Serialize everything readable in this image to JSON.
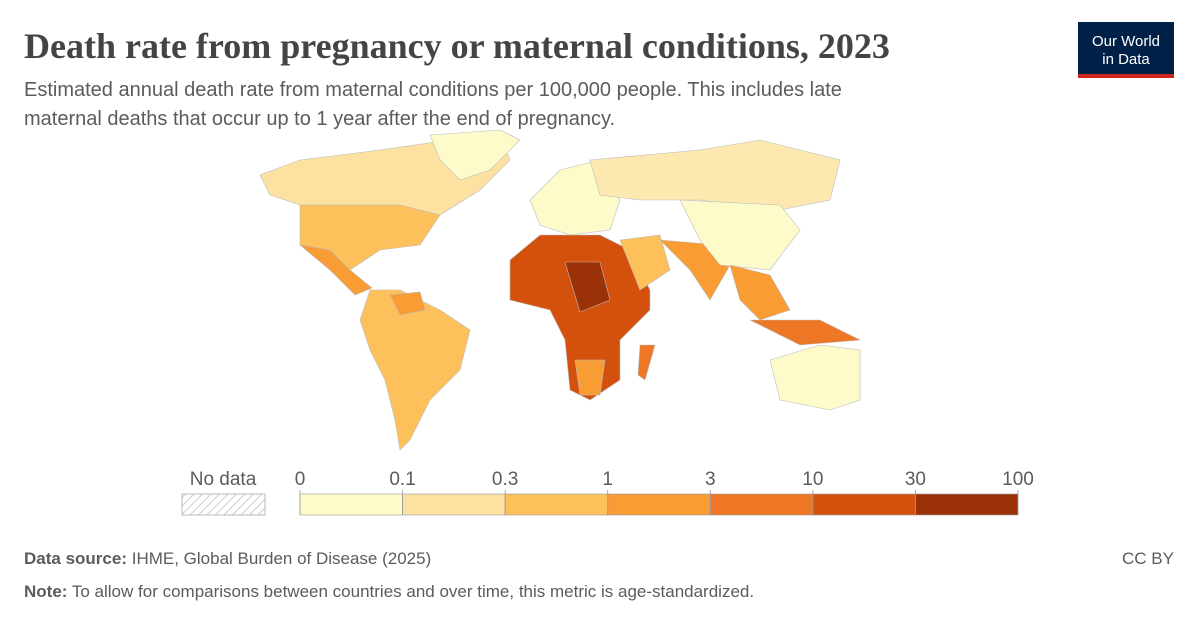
{
  "chart_data": {
    "type": "choropleth",
    "title": "Death rate from pregnancy or maternal conditions, 2023",
    "subtitle": [
      "Estimated annual death rate from maternal conditions per 100,000 people. This includes late",
      "maternal deaths that occur up to 1 year after the end of pregnancy."
    ],
    "logo": [
      "Our World",
      "in Data"
    ],
    "no_data_label": "No data",
    "bins": [
      0,
      0.1,
      0.3,
      1,
      3,
      10,
      30,
      100
    ],
    "colors": [
      "#fefbcb",
      "#fde1a0",
      "#fdc05b",
      "#f99c34",
      "#ee7725",
      "#d4500d",
      "#9a3107"
    ],
    "source_label": "Data source:",
    "source": "IHME, Global Burden of Disease (2025)",
    "note_label": "Note:",
    "note": "To allow for comparisons between countries and over time, this metric is age-standardized.",
    "license": "CC BY"
  }
}
